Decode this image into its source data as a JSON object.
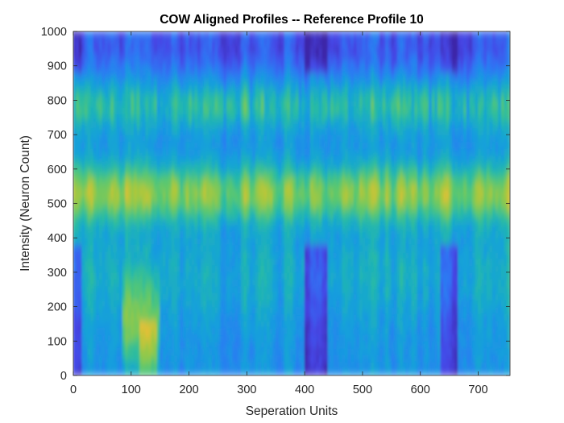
{
  "chart_data": {
    "type": "heatmap",
    "title": "COW Aligned Profiles -- Reference Profile 10",
    "xlabel": "Seperation Units",
    "ylabel": "Intensity (Neuron Count)",
    "xlim": [
      0,
      755
    ],
    "ylim": [
      0,
      1000
    ],
    "xticks": [
      "0",
      "100",
      "200",
      "300",
      "400",
      "500",
      "600",
      "700"
    ],
    "yticks": [
      "0",
      "100",
      "200",
      "300",
      "400",
      "500",
      "600",
      "700",
      "800",
      "900",
      "1000"
    ],
    "colormap": "parula",
    "grid": false,
    "colors": {
      "low": "#3e26a8",
      "mid_low": "#1f96e2",
      "mid": "#2ebba2",
      "mid_high": "#a6c73c",
      "high": "#f6d52a"
    },
    "bands": [
      {
        "y_center": 530,
        "level": "high"
      },
      {
        "y_center": 780,
        "level": "mid_high"
      },
      {
        "y_center": 270,
        "level": "mid"
      },
      {
        "y_center": 950,
        "level": "low"
      }
    ]
  }
}
